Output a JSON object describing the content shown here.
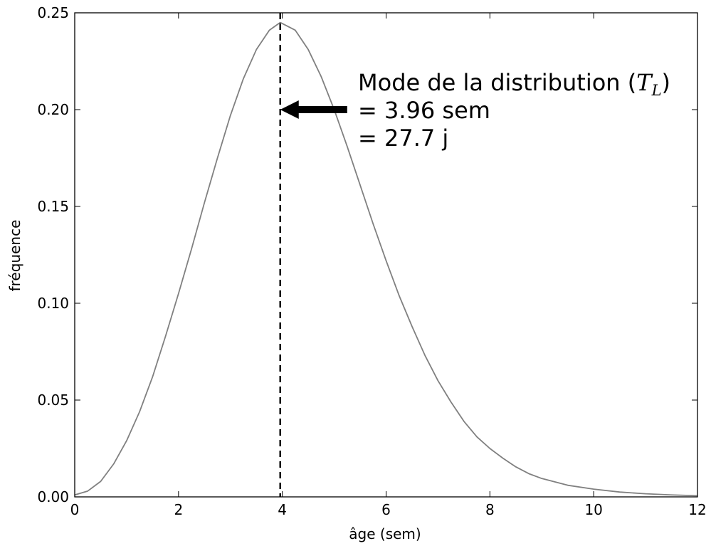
{
  "chart_data": {
    "type": "line",
    "title": "",
    "xlabel": "âge (sem)",
    "ylabel": "fréquence",
    "xlim": [
      0,
      12
    ],
    "ylim": [
      0,
      0.25
    ],
    "xticks": [
      "0",
      "2",
      "4",
      "6",
      "8",
      "10",
      "12"
    ],
    "yticks": [
      "0.00",
      "0.05",
      "0.10",
      "0.15",
      "0.20",
      "0.25"
    ],
    "grid": false,
    "legend": "none",
    "series": [
      {
        "color": "#808080",
        "x": [
          0,
          0.25,
          0.5,
          0.75,
          1,
          1.25,
          1.5,
          1.75,
          2,
          2.25,
          2.5,
          2.75,
          3,
          3.25,
          3.5,
          3.75,
          3.96,
          4.25,
          4.5,
          4.75,
          5,
          5.25,
          5.5,
          5.75,
          6,
          6.25,
          6.5,
          6.75,
          7,
          7.25,
          7.5,
          7.75,
          8,
          8.25,
          8.5,
          8.75,
          9,
          9.5,
          10,
          10.5,
          11,
          11.5,
          12
        ],
        "y": [
          0.001,
          0.003,
          0.008,
          0.017,
          0.029,
          0.044,
          0.062,
          0.083,
          0.105,
          0.128,
          0.152,
          0.175,
          0.197,
          0.216,
          0.231,
          0.241,
          0.245,
          0.241,
          0.231,
          0.217,
          0.2,
          0.181,
          0.161,
          0.141,
          0.122,
          0.104,
          0.088,
          0.073,
          0.06,
          0.049,
          0.039,
          0.031,
          0.025,
          0.02,
          0.0155,
          0.012,
          0.0095,
          0.006,
          0.004,
          0.0025,
          0.0016,
          0.001,
          0.0006
        ]
      }
    ],
    "mode_line": {
      "x": 3.96,
      "color": "#000000",
      "style": "dashed"
    },
    "annotation": {
      "lines": [
        "Mode de la distribution (",
        "= 3.96 sem",
        "= 27.7 j"
      ],
      "math": "T",
      "math_subscript": "L",
      "math_close": ")",
      "arrow_target": [
        3.96,
        0.2
      ],
      "arrow_start": [
        5.25,
        0.2
      ],
      "arrow_color": "#000000"
    }
  }
}
